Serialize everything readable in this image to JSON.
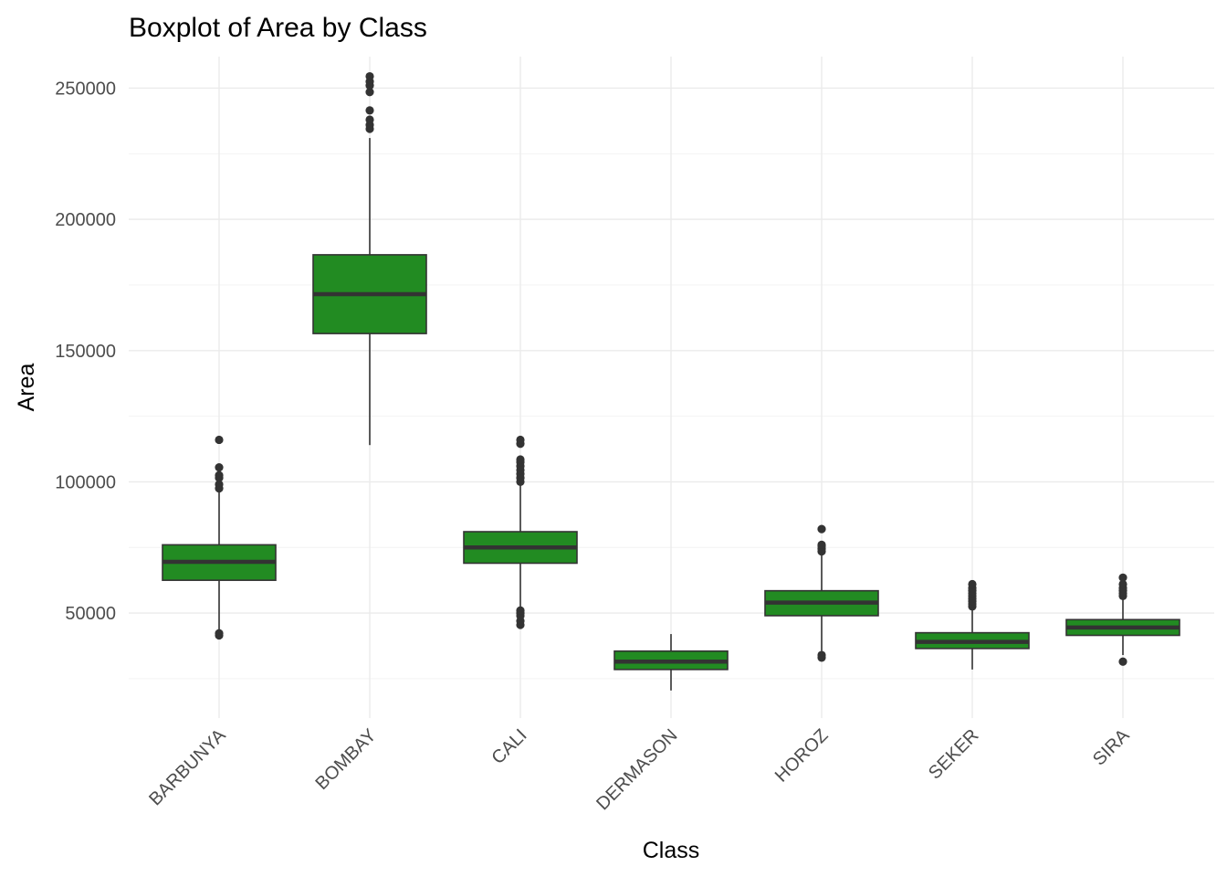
{
  "chart_data": {
    "type": "boxplot",
    "title": "Boxplot of Area by Class",
    "xlabel": "Class",
    "ylabel": "Area",
    "ylim": [
      10000,
      262000
    ],
    "yticks": [
      50000,
      100000,
      150000,
      200000,
      250000
    ],
    "ytick_labels": [
      "50000",
      "100000",
      "150000",
      "200000",
      "250000"
    ],
    "grid": true,
    "legend": "none",
    "box_color": "#228B22",
    "line_color": "#333333",
    "categories": [
      "BARBUNYA",
      "BOMBAY",
      "CALI",
      "DERMASON",
      "HOROZ",
      "SEKER",
      "SIRA"
    ],
    "boxes": [
      {
        "category": "BARBUNYA",
        "whisker_low": 43000,
        "q1": 62500,
        "median": 69500,
        "q3": 76000,
        "whisker_high": 96500,
        "outliers": [
          41500,
          42300,
          97500,
          99000,
          101500,
          102500,
          105500,
          116000
        ]
      },
      {
        "category": "BOMBAY",
        "whisker_low": 114000,
        "q1": 156500,
        "median": 171500,
        "q3": 186500,
        "whisker_high": 231000,
        "outliers": [
          234500,
          236000,
          238000,
          241500,
          248500,
          251000,
          252500,
          254500
        ]
      },
      {
        "category": "CALI",
        "whisker_low": 52000,
        "q1": 69000,
        "median": 75000,
        "q3": 81000,
        "whisker_high": 99000,
        "outliers": [
          45500,
          47000,
          49000,
          50000,
          51000,
          100000,
          101500,
          103000,
          104500,
          106000,
          107500,
          108500,
          114500,
          116000
        ]
      },
      {
        "category": "DERMASON",
        "whisker_low": 20500,
        "q1": 28500,
        "median": 31500,
        "q3": 35500,
        "whisker_high": 42000,
        "outliers": []
      },
      {
        "category": "HOROZ",
        "whisker_low": 35500,
        "q1": 49000,
        "median": 54000,
        "q3": 58500,
        "whisker_high": 72500,
        "outliers": [
          33000,
          34000,
          73500,
          74500,
          75500,
          76000,
          82000
        ]
      },
      {
        "category": "SEKER",
        "whisker_low": 28500,
        "q1": 36500,
        "median": 39000,
        "q3": 42500,
        "whisker_high": 51500,
        "outliers": [
          52500,
          53500,
          54500,
          55500,
          56500,
          57500,
          58500,
          59500,
          61000
        ]
      },
      {
        "category": "SIRA",
        "whisker_low": 34000,
        "q1": 41500,
        "median": 44500,
        "q3": 47500,
        "whisker_high": 55500,
        "outliers": [
          31500,
          56500,
          57500,
          58500,
          59500,
          61000,
          63500
        ]
      }
    ]
  }
}
